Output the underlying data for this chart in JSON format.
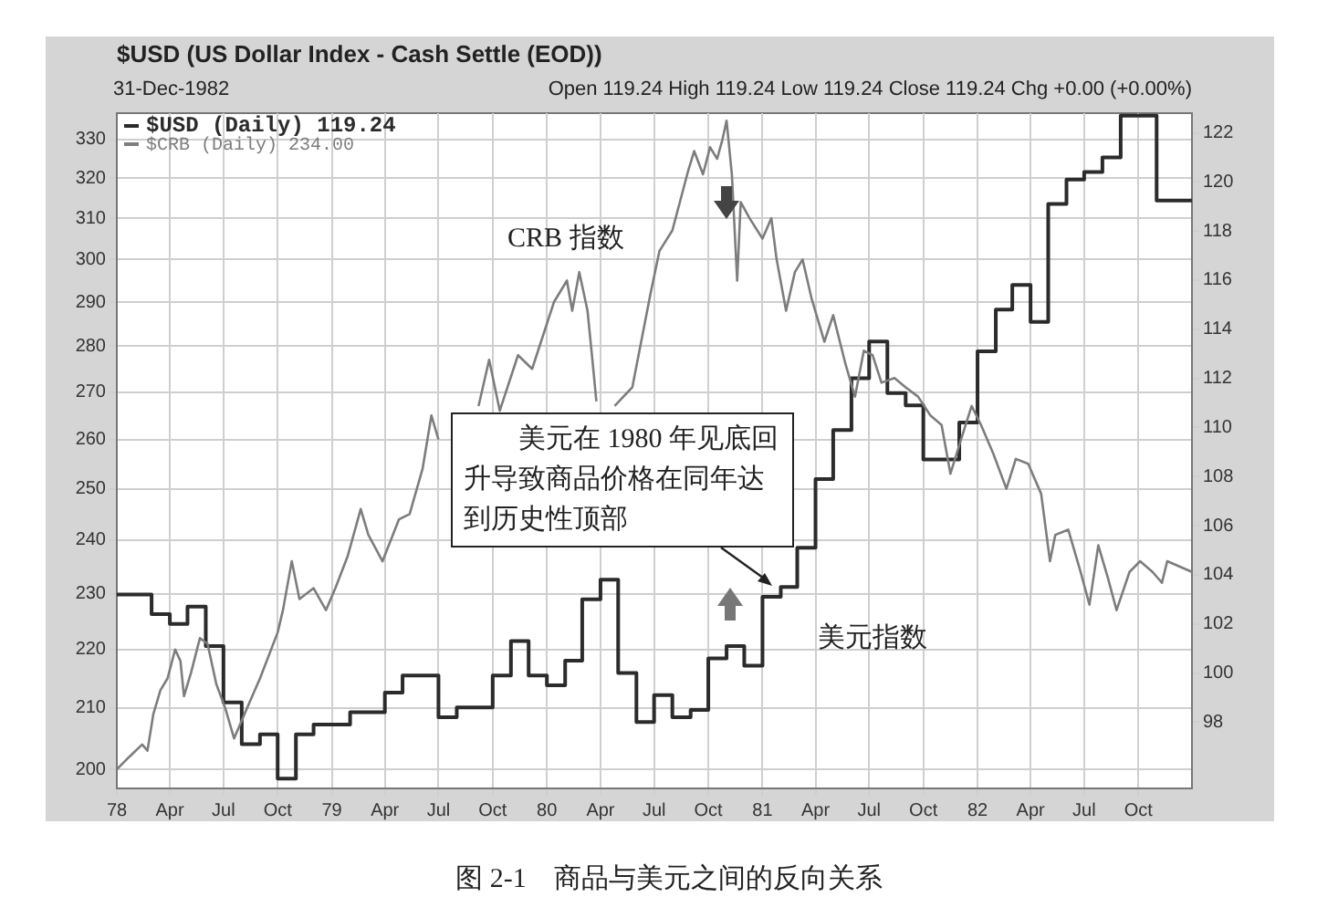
{
  "chart_data": {
    "type": "line",
    "title": "$USD (US Dollar Index - Cash Settle (EOD))",
    "subtitle": "31-Dec-1982",
    "annotations": [
      "Open 119.24  High 119.24  Low 119.24  Close 119.24  Chg +0.00 (+0.00%)",
      "CRB 指数",
      "美元在 1980 年见底回升导致商品价格在同年达到历史性顶部",
      "美元指数",
      "图 2-1    商品与美元之间的反向关系"
    ],
    "xlim": [
      "1978-01-01",
      "1982-12-31"
    ],
    "xticks": [
      {
        "value": "1978-01-01",
        "label": "78"
      },
      {
        "value": "1978-04-01",
        "label": "Apr"
      },
      {
        "value": "1978-07-01",
        "label": "Jul"
      },
      {
        "value": "1978-10-01",
        "label": "Oct"
      },
      {
        "value": "1979-01-01",
        "label": "79"
      },
      {
        "value": "1979-04-01",
        "label": "Apr"
      },
      {
        "value": "1979-07-01",
        "label": "Jul"
      },
      {
        "value": "1979-10-01",
        "label": "Oct"
      },
      {
        "value": "1980-01-01",
        "label": "80"
      },
      {
        "value": "1980-04-01",
        "label": "Apr"
      },
      {
        "value": "1980-07-01",
        "label": "Jul"
      },
      {
        "value": "1980-10-01",
        "label": "Oct"
      },
      {
        "value": "1981-01-01",
        "label": "81"
      },
      {
        "value": "1981-04-01",
        "label": "Apr"
      },
      {
        "value": "1981-07-01",
        "label": "Jul"
      },
      {
        "value": "1981-10-01",
        "label": "Oct"
      },
      {
        "value": "1982-01-01",
        "label": "82"
      },
      {
        "value": "1982-04-01",
        "label": "Apr"
      },
      {
        "value": "1982-07-01",
        "label": "Jul"
      },
      {
        "value": "1982-10-01",
        "label": "Oct"
      }
    ],
    "ylim": [
      197,
      337
    ],
    "yticks": [
      200,
      210,
      220,
      230,
      240,
      250,
      260,
      270,
      280,
      290,
      300,
      310,
      320,
      330
    ],
    "y2lim": [
      95.3,
      122.8
    ],
    "y2ticks": [
      98,
      100,
      102,
      104,
      106,
      108,
      110,
      112,
      114,
      116,
      118,
      120,
      122
    ],
    "log": true,
    "grid": true,
    "legend": "top left",
    "series": [
      {
        "name": "$USD (Daily) 119.24",
        "type": "step",
        "axis": "y2",
        "color": "#2b2b2b",
        "x": [
          "1978-01-01",
          "1978-03-01",
          "1978-04-01",
          "1978-05-01",
          "1978-06-01",
          "1978-07-01",
          "1978-08-01",
          "1978-09-01",
          "1978-10-01",
          "1978-11-01",
          "1978-12-01",
          "1979-02-01",
          "1979-04-01",
          "1979-05-01",
          "1979-07-01",
          "1979-08-01",
          "1979-10-01",
          "1979-11-01",
          "1979-12-01",
          "1980-01-01",
          "1980-02-01",
          "1980-03-01",
          "1980-04-01",
          "1980-05-01",
          "1980-06-01",
          "1980-07-01",
          "1980-08-01",
          "1980-09-01",
          "1980-10-01",
          "1980-11-01",
          "1980-12-01",
          "1981-01-01",
          "1981-02-01",
          "1981-03-01",
          "1981-04-01",
          "1981-05-01",
          "1981-06-01",
          "1981-07-01",
          "1981-08-01",
          "1981-09-01",
          "1981-10-01",
          "1981-12-01",
          "1982-01-01",
          "1982-02-01",
          "1982-03-01",
          "1982-04-01",
          "1982-05-01",
          "1982-06-01",
          "1982-07-01",
          "1982-08-01",
          "1982-09-01",
          "1982-11-01",
          "1982-12-31"
        ],
        "values": [
          103.2,
          102.4,
          102.0,
          102.7,
          101.1,
          98.8,
          97.1,
          97.5,
          95.7,
          97.5,
          97.9,
          98.4,
          99.2,
          99.9,
          98.2,
          98.6,
          99.9,
          101.3,
          99.9,
          99.5,
          100.5,
          103.0,
          103.8,
          100.0,
          98.0,
          99.1,
          98.2,
          98.5,
          100.6,
          101.1,
          100.3,
          103.1,
          103.5,
          105.1,
          107.9,
          109.9,
          112.0,
          113.5,
          111.4,
          110.9,
          108.7,
          110.2,
          113.1,
          114.8,
          115.8,
          114.3,
          119.1,
          120.1,
          120.4,
          121.0,
          122.7,
          119.24,
          119.24
        ]
      },
      {
        "name": "$CRB (Daily) 234.00",
        "type": "line",
        "color": "#7d7d7d",
        "x": [
          "1978-01-01",
          "1978-01-22",
          "1978-02-13",
          "1978-02-22",
          "1978-03-04",
          "1978-03-16",
          "1978-03-28",
          "1978-04-10",
          "1978-04-19",
          "1978-04-25",
          "1978-05-07",
          "1978-05-22",
          "1978-06-04",
          "1978-06-19",
          "1978-07-04",
          "1978-07-19",
          "1978-07-28",
          "1978-08-10",
          "1978-09-01",
          "1978-10-01",
          "1978-10-10",
          "1978-10-25",
          "1978-11-07",
          "1978-12-01",
          "1978-12-22",
          "1979-01-07",
          "1979-01-28",
          "1979-02-19",
          "1979-03-04",
          "1979-03-28",
          "1979-04-25",
          "1979-05-13",
          "1979-06-04",
          "1979-06-19",
          "1979-07-01",
          "1979-08-01",
          "1979-09-07",
          "1979-09-25",
          "1979-10-13",
          "1979-11-13",
          "1979-12-07",
          "1979-12-22",
          "1980-01-13",
          "1980-02-04",
          "1980-02-13",
          "1980-02-25",
          "1980-03-10",
          "1980-03-19",
          "1980-03-25",
          "1980-04-10",
          "1980-04-25",
          "1980-05-25",
          "1980-06-25",
          "1980-07-10",
          "1980-08-01",
          "1980-08-28",
          "1980-09-07",
          "1980-09-22",
          "1980-10-04",
          "1980-10-16",
          "1980-10-25",
          "1980-11-01",
          "1980-11-10",
          "1980-11-19",
          "1980-11-25",
          "1980-12-10",
          "1981-01-01",
          "1981-01-16",
          "1981-01-25",
          "1981-02-10",
          "1981-02-25",
          "1981-03-10",
          "1981-03-25",
          "1981-04-16",
          "1981-05-01",
          "1981-05-22",
          "1981-06-07",
          "1981-06-22",
          "1981-07-07",
          "1981-07-22",
          "1981-08-13",
          "1981-09-01",
          "1981-09-22",
          "1981-10-13",
          "1981-11-01",
          "1981-11-16",
          "1981-12-04",
          "1981-12-22",
          "1982-01-07",
          "1982-01-28",
          "1982-02-19",
          "1982-03-07",
          "1982-03-28",
          "1982-04-19",
          "1982-05-04",
          "1982-05-13",
          "1982-06-04",
          "1982-06-25",
          "1982-07-10",
          "1982-07-25",
          "1982-08-10",
          "1982-08-25",
          "1982-09-16",
          "1982-10-04",
          "1982-10-25",
          "1982-11-10",
          "1982-11-19",
          "1982-12-31"
        ],
        "values": [
          200,
          202,
          204,
          203,
          209,
          213,
          215,
          220,
          218,
          212,
          216,
          222,
          221,
          214,
          210,
          205,
          207,
          210,
          215,
          223,
          227,
          236,
          229,
          231,
          227,
          231,
          237,
          246,
          241,
          236,
          244,
          245,
          254,
          265,
          260,
          null,
          267,
          277,
          266,
          278,
          275,
          281,
          290,
          295,
          288,
          297,
          288,
          276,
          268,
          null,
          267,
          271,
          292,
          302,
          307,
          322,
          327,
          321,
          328,
          325,
          330,
          335,
          321,
          295,
          314,
          310,
          305,
          310,
          300,
          288,
          297,
          300,
          291,
          281,
          287,
          276,
          269,
          279,
          278,
          272,
          273,
          271,
          269,
          265,
          263,
          253,
          260,
          267,
          263,
          257,
          250,
          256,
          255,
          249,
          236,
          241,
          242,
          234,
          228,
          239,
          233,
          227,
          234,
          236,
          234,
          232,
          236,
          234
        ]
      }
    ]
  }
}
